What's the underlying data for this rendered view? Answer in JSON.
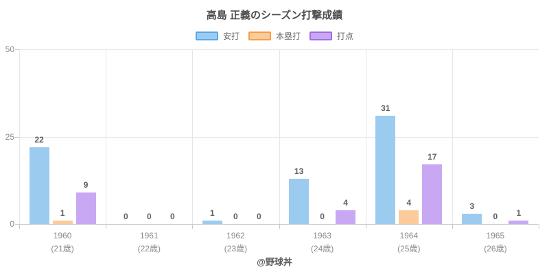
{
  "header": {
    "title": "高島 正義のシーズン打撃成績"
  },
  "footer": {
    "credit": "@野球丼"
  },
  "colors": {
    "grid": "#e6e6e6",
    "axis": "#c9c9c9",
    "tick_text": "#8a8a8a",
    "value_label": "#5f5f5f",
    "title_text": "#4d4d4d",
    "legend_text": "#666666",
    "footer_text": "#595959",
    "background": "#ffffff"
  },
  "chart_data": {
    "type": "bar",
    "title": "高島 正義のシーズン打撃成績",
    "categories": [
      "1960",
      "1961",
      "1962",
      "1963",
      "1964",
      "1965"
    ],
    "category_sublabels": [
      "(21歳)",
      "(22歳)",
      "(23歳)",
      "(24歳)",
      "(25歳)",
      "(26歳)"
    ],
    "series": [
      {
        "key": "hits",
        "name": "安打",
        "values": [
          22,
          0,
          1,
          13,
          31,
          3
        ],
        "fill": "#9ccbf0",
        "border": "#54a8e8"
      },
      {
        "key": "home-runs",
        "name": "本塁打",
        "values": [
          1,
          0,
          0,
          0,
          4,
          0
        ],
        "fill": "#fbcb9b",
        "border": "#f79d45"
      },
      {
        "key": "rbi",
        "name": "打点",
        "values": [
          9,
          0,
          0,
          4,
          17,
          1
        ],
        "fill": "#c8a8f2",
        "border": "#9f6be8"
      }
    ],
    "ylim": [
      0,
      50
    ],
    "yticks": [
      0,
      25,
      50
    ],
    "grid": true,
    "legend_position": "top",
    "show_value_labels": true,
    "xlabel": "",
    "ylabel": ""
  }
}
